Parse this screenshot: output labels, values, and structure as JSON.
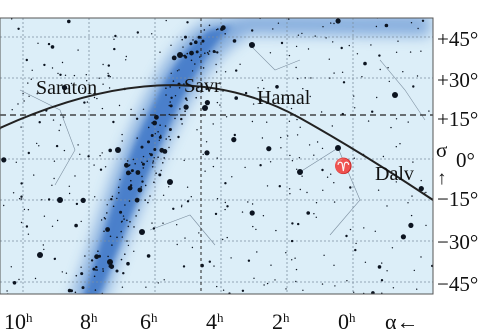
{
  "map": {
    "declination_labels": [
      {
        "value": 45,
        "label": "+45°"
      },
      {
        "value": 30,
        "label": "+30°"
      },
      {
        "value": 15,
        "label": "+15°"
      },
      {
        "value": 0,
        "label": "0°"
      },
      {
        "value": -15,
        "label": "−15°"
      },
      {
        "value": -30,
        "label": "−30°"
      },
      {
        "value": -45,
        "label": "−45°"
      }
    ],
    "ra_labels": [
      {
        "hours": 10,
        "main": "10",
        "sup": "h"
      },
      {
        "hours": 8,
        "main": "8",
        "sup": "h"
      },
      {
        "hours": 6,
        "main": "6",
        "sup": "h"
      },
      {
        "hours": 4,
        "main": "4",
        "sup": "h"
      },
      {
        "hours": 2,
        "main": "2",
        "sup": "h"
      },
      {
        "hours": 0,
        "main": "0",
        "sup": "h"
      }
    ],
    "ra_axis_label": "α←",
    "dec_axis_symbol": "σ",
    "dec_axis_arrow": "↑",
    "aries_symbol": "♈",
    "star_names": [
      {
        "name": "Saraton"
      },
      {
        "name": "Savr"
      },
      {
        "name": "Hamal"
      },
      {
        "name": "Dalv"
      }
    ],
    "colors": {
      "sky": "#dceef8",
      "milky_way": "#3f78c8",
      "grid": "#7c8fa0",
      "ecliptic": "#222222",
      "star": "#0c1420"
    }
  }
}
